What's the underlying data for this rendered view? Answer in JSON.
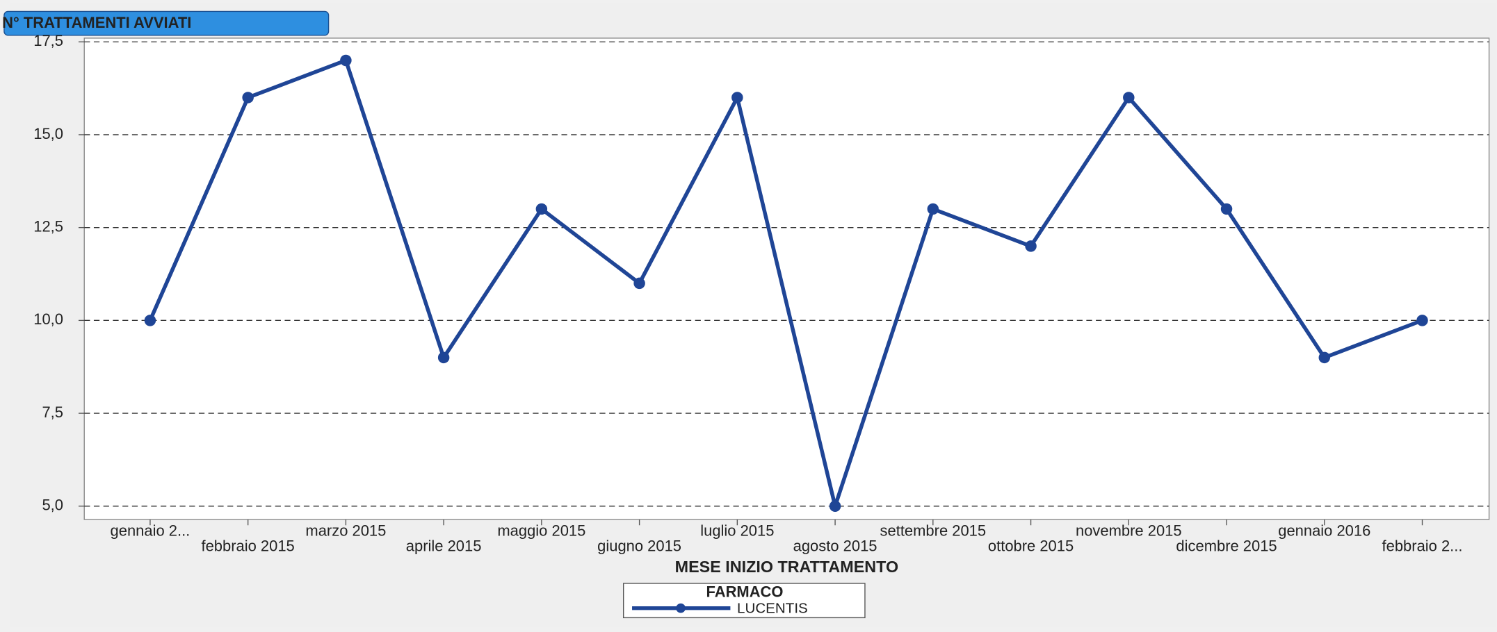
{
  "chart_data": {
    "type": "line",
    "title": "N° TRATTAMENTI AVVIATI",
    "x_label": "MESE INIZIO TRATTAMENTO",
    "legend_title": "FARMACO",
    "categories": [
      "gennaio 2...",
      "febbraio 2015",
      "marzo 2015",
      "aprile 2015",
      "maggio 2015",
      "giugno 2015",
      "luglio 2015",
      "agosto 2015",
      "settembre 2015",
      "ottobre 2015",
      "novembre 2015",
      "dicembre 2015",
      "gennaio 2016",
      "febbraio 2..."
    ],
    "series": [
      {
        "name": "LUCENTIS",
        "color": "#1f4596",
        "values": [
          10,
          16,
          17,
          9,
          13,
          11,
          16,
          5,
          13,
          12,
          16,
          13,
          9,
          10
        ]
      }
    ],
    "ylim": [
      4.64,
      17.6
    ],
    "yticks": [
      {
        "value": 5,
        "label": "5,0"
      },
      {
        "value": 7.5,
        "label": "7,5"
      },
      {
        "value": 10,
        "label": "10,0"
      },
      {
        "value": 12.5,
        "label": "12,5"
      },
      {
        "value": 15,
        "label": "15,0"
      },
      {
        "value": 17.5,
        "label": "17,5"
      }
    ],
    "grid": true
  }
}
